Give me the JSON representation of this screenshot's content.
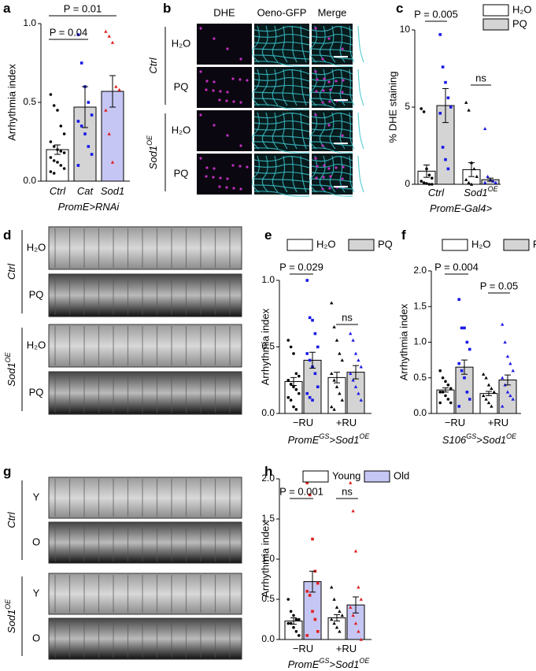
{
  "chart_data": [
    {
      "type": "bar",
      "label": "a",
      "ylabel": "Arrhythmia index",
      "xlabel": [
        {
          "text": "PromE>RNAi"
        }
      ],
      "italic_categories": true,
      "categories": [
        "Ctrl",
        "Cat",
        "Sod1"
      ],
      "category_sups": [
        null,
        null,
        null
      ],
      "values": [
        0.2,
        0.47,
        0.57
      ],
      "errors": [
        0.03,
        0.13,
        0.1
      ],
      "colors": [
        "#ffffff",
        "#d4d4d4",
        "#c6c6f4"
      ],
      "point_colors": [
        "#000000",
        "#1a1ae6",
        "#e02020"
      ],
      "points": [
        [
          0.55,
          0.48,
          0.45,
          0.35,
          0.3,
          0.25,
          0.22,
          0.2,
          0.19,
          0.18,
          0.15,
          0.13,
          0.12,
          0.1,
          0.08,
          0.06,
          0.05
        ],
        [
          0.93,
          0.75,
          0.6,
          0.5,
          0.42,
          0.38,
          0.35,
          0.3,
          0.22,
          0.17,
          0.1
        ],
        [
          0.95,
          0.92,
          0.88,
          0.6,
          0.58,
          0.45,
          0.3,
          0.12
        ]
      ],
      "ylim": [
        0,
        1
      ],
      "yticks": [
        {
          "value": 0,
          "label": "0.0"
        },
        {
          "value": 0.5,
          "label": "0.5"
        },
        {
          "value": 1,
          "label": "1.0"
        }
      ],
      "annotations": [
        {
          "text": "P = 0.01",
          "color": "#000000"
        },
        {
          "text": "P = 0.04",
          "color": "#1a1ae6"
        }
      ]
    },
    {
      "type": "grouped_bar",
      "label": "c",
      "ylabel": "% DHE staining",
      "xlabel": [
        {
          "text": "PromE-Gal4>"
        }
      ],
      "italic_categories": true,
      "categories": [
        "Ctrl",
        "Sod1"
      ],
      "category_sups": [
        null,
        "OE"
      ],
      "legend": "top-right-vertical",
      "series": [
        {
          "name": "H₂O",
          "color": "#ffffff",
          "point_color": "#000000",
          "values": [
            0.85,
            0.95
          ],
          "errors": [
            0.4,
            0.45
          ],
          "points": [
            [
              4.9,
              4.7,
              1.0,
              0.6,
              0.4,
              0.2,
              0.1,
              0.05,
              0.0,
              0.0
            ],
            [
              5.3,
              4.8,
              1.4,
              1.0,
              0.5,
              0.3,
              0.1,
              0.0
            ]
          ]
        },
        {
          "name": "PQ",
          "color": "#d4d4d4",
          "point_color": "#1a1ae6",
          "values": [
            5.1,
            0.3
          ],
          "errors": [
            1.1,
            0.1
          ],
          "points": [
            [
              9.7,
              7.6,
              6.6,
              5.6,
              5.0,
              4.6,
              2.4,
              1.6,
              1.0
            ],
            [
              3.6,
              0.5,
              0.3,
              0.2,
              0.1,
              0.1
            ]
          ]
        }
      ],
      "ylim": [
        0,
        10
      ],
      "yticks": [
        0,
        5,
        10
      ],
      "annotations": [
        {
          "text": "P = 0.005",
          "color": "#000000"
        },
        {
          "text": "ns",
          "color": "#000000"
        }
      ]
    },
    {
      "type": "grouped_bar",
      "label": "e",
      "ylabel": "Arrhythmia index",
      "xlabel": [
        {
          "text": "PromE"
        },
        {
          "text": "GS",
          "sup": true
        },
        {
          "text": ">Sod1"
        },
        {
          "text": "OE",
          "sup": true
        }
      ],
      "italic_categories": false,
      "categories": [
        "−RU",
        "+RU"
      ],
      "category_sups": [
        null,
        null
      ],
      "legend": "top",
      "series": [
        {
          "name": "H₂O",
          "color": "#ffffff",
          "point_color": "#000000",
          "values": [
            0.24,
            0.27
          ],
          "errors": [
            0.03,
            0.04
          ],
          "points": [
            [
              0.55,
              0.5,
              0.45,
              0.3,
              0.28,
              0.25,
              0.22,
              0.2,
              0.18,
              0.15,
              0.12,
              0.1,
              0.05,
              0.03
            ],
            [
              0.83,
              0.65,
              0.55,
              0.45,
              0.4,
              0.3,
              0.25,
              0.2,
              0.15,
              0.1,
              0.05,
              0.03
            ]
          ]
        },
        {
          "name": "PQ",
          "color": "#d4d4d4",
          "point_color": "#1a1ae6",
          "values": [
            0.4,
            0.31
          ],
          "errors": [
            0.06,
            0.05
          ],
          "points": [
            [
              1.0,
              0.72,
              0.7,
              0.6,
              0.5,
              0.45,
              0.4,
              0.35,
              0.3,
              0.2,
              0.15,
              0.12,
              0.1
            ],
            [
              0.6,
              0.55,
              0.45,
              0.4,
              0.35,
              0.3,
              0.25,
              0.2,
              0.15,
              0.1
            ]
          ]
        }
      ],
      "ylim": [
        0,
        1
      ],
      "yticks": [
        {
          "value": 0,
          "label": "0.0"
        },
        {
          "value": 0.5,
          "label": "0.5"
        },
        {
          "value": 1,
          "label": "1.0"
        }
      ],
      "annotations": [
        {
          "text": "P = 0.029",
          "color": "#000000"
        },
        {
          "text": "ns",
          "color": "#000000"
        }
      ]
    },
    {
      "type": "grouped_bar",
      "label": "f",
      "ylabel": "Arrhythmia index",
      "xlabel": [
        {
          "text": "S106"
        },
        {
          "text": "GS",
          "sup": true
        },
        {
          "text": ">Sod1"
        },
        {
          "text": "OE",
          "sup": true
        }
      ],
      "italic_categories": false,
      "categories": [
        "−RU",
        "+RU"
      ],
      "category_sups": [
        null,
        null
      ],
      "legend": "top",
      "series": [
        {
          "name": "H₂O",
          "color": "#ffffff",
          "point_color": "#000000",
          "values": [
            0.33,
            0.28
          ],
          "errors": [
            0.03,
            0.03
          ],
          "points": [
            [
              0.6,
              0.5,
              0.45,
              0.4,
              0.35,
              0.3,
              0.3,
              0.25,
              0.2,
              0.15,
              0.15
            ],
            [
              0.55,
              0.5,
              0.4,
              0.35,
              0.3,
              0.25,
              0.2,
              0.15,
              0.1
            ]
          ]
        },
        {
          "name": "PQ",
          "color": "#d4d4d4",
          "point_color": "#1a1ae6",
          "values": [
            0.65,
            0.47
          ],
          "errors": [
            0.1,
            0.07
          ],
          "points": [
            [
              1.6,
              1.2,
              1.2,
              1.0,
              0.9,
              0.7,
              0.6,
              0.5,
              0.3,
              0.2,
              0.1
            ],
            [
              1.25,
              1.0,
              0.8,
              0.7,
              0.6,
              0.5,
              0.4,
              0.3,
              0.25,
              0.2,
              0.1
            ]
          ]
        }
      ],
      "ylim": [
        0,
        2
      ],
      "yticks": [
        {
          "value": 0,
          "label": "0.0"
        },
        {
          "value": 0.5,
          "label": "0.5"
        },
        {
          "value": 1,
          "label": "1.0"
        },
        {
          "value": 1.5,
          "label": "1.5"
        },
        {
          "value": 2,
          "label": "2.0"
        }
      ],
      "annotations": [
        {
          "text": "P = 0.004",
          "color": "#000000"
        },
        {
          "text": "P = 0.05",
          "color": "#000000"
        }
      ]
    },
    {
      "type": "grouped_bar",
      "label": "h",
      "ylabel": "Arrhythmia index",
      "xlabel": [
        {
          "text": "PromE"
        },
        {
          "text": "GS",
          "sup": true
        },
        {
          "text": ">Sod1"
        },
        {
          "text": "OE",
          "sup": true
        }
      ],
      "italic_categories": false,
      "categories": [
        "−RU",
        "+RU"
      ],
      "category_sups": [
        null,
        null
      ],
      "legend": "top",
      "series": [
        {
          "name": "Young",
          "color": "#ffffff",
          "point_color": "#000000",
          "values": [
            0.23,
            0.27
          ],
          "errors": [
            0.04,
            0.04
          ],
          "points": [
            [
              0.5,
              0.35,
              0.3,
              0.25,
              0.25,
              0.2,
              0.2,
              0.15,
              0.1,
              0.05
            ],
            [
              0.65,
              0.5,
              0.4,
              0.35,
              0.3,
              0.25,
              0.2,
              0.15,
              0.1
            ]
          ]
        },
        {
          "name": "Old",
          "color": "#c6c6f4",
          "point_color": "#e02020",
          "values": [
            0.72,
            0.43
          ],
          "errors": [
            0.13,
            0.1
          ],
          "points": [
            [
              1.95,
              1.8,
              1.25,
              0.85,
              0.7,
              0.6,
              0.55,
              0.35,
              0.25,
              0.1,
              0.05
            ],
            [
              1.95,
              1.6,
              1.1,
              0.65,
              0.5,
              0.4,
              0.3,
              0.2,
              0.1,
              0.0
            ]
          ]
        }
      ],
      "ylim": [
        0,
        2
      ],
      "yticks": [
        {
          "value": 0,
          "label": "0.0"
        },
        {
          "value": 0.5,
          "label": "0.5"
        },
        {
          "value": 1,
          "label": "1.0"
        },
        {
          "value": 1.5,
          "label": "1.5"
        },
        {
          "value": 2,
          "label": "2.0"
        }
      ],
      "annotations": [
        {
          "text": "P = 0.001",
          "color": "#000000"
        },
        {
          "text": "ns",
          "color": "#000000"
        }
      ]
    }
  ],
  "figures": [
    {
      "label": "b",
      "kind": "micrograph",
      "columns": [
        "DHE",
        "Oeno-GFP",
        "Merge"
      ],
      "groups": [
        {
          "name": "Ctrl",
          "sup": null,
          "rows": [
            "H₂O",
            "PQ"
          ]
        },
        {
          "name": "Sod1",
          "sup": "OE",
          "rows": [
            "H₂O",
            "PQ"
          ]
        }
      ]
    },
    {
      "label": "d",
      "kind": "kymograph",
      "columns": [],
      "groups": [
        {
          "name": "Ctrl",
          "sup": null,
          "rows": [
            "H₂O",
            "PQ"
          ]
        },
        {
          "name": "Sod1",
          "sup": "OE",
          "rows": [
            "H₂O",
            "PQ"
          ]
        }
      ]
    },
    {
      "label": "g",
      "kind": "kymograph",
      "columns": [],
      "groups": [
        {
          "name": "Ctrl",
          "sup": null,
          "rows": [
            "Y",
            "O"
          ]
        },
        {
          "name": "Sod1",
          "sup": "OE",
          "rows": [
            "Y",
            "O"
          ]
        }
      ]
    }
  ]
}
